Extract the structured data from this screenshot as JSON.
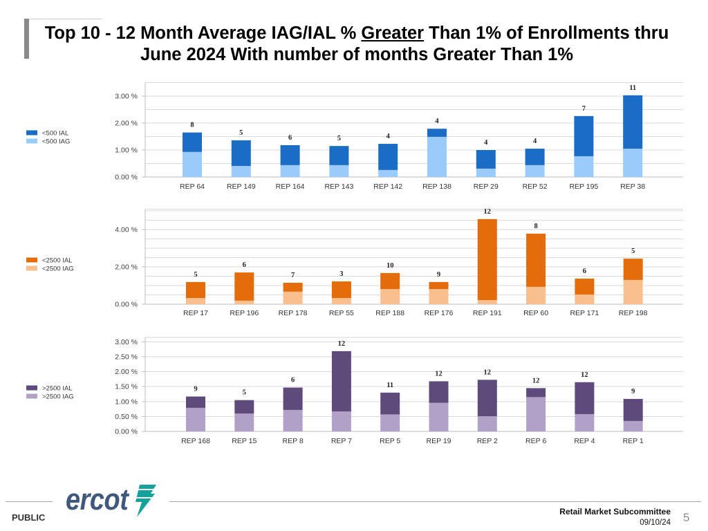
{
  "slide": {
    "title": {
      "line1_pre": "Top 10 - 12 Month Average IAG/IAL % ",
      "line1_emph": "Greater",
      "line1_post": " Than 1% of Enrollments thru",
      "line2": "June 2024 With number of months Greater Than 1%"
    },
    "footer": {
      "classification": "PUBLIC",
      "logo_text": "ercot",
      "committee": "Retail Market Subcommittee",
      "date": "09/10/24",
      "page_number": "5"
    }
  },
  "colors": {
    "title_accent": "#8a8a8a",
    "logo_text": "#40587c",
    "logo_mark": "#14a39b"
  },
  "chart_data": [
    {
      "type": "bar",
      "stacked": true,
      "categories": [
        "REP 64",
        "REP 149",
        "REP 164",
        "REP 143",
        "REP 142",
        "REP 138",
        "REP 29",
        "REP 52",
        "REP 195",
        "REP 38"
      ],
      "series": [
        {
          "name": "<500 IAL",
          "color": "#1a6cc4",
          "values": [
            0.72,
            0.95,
            0.74,
            0.71,
            0.97,
            0.3,
            0.69,
            0.61,
            1.49,
            1.98
          ]
        },
        {
          "name": "<500 IAG",
          "color": "#99ccfa",
          "values": [
            0.93,
            0.41,
            0.44,
            0.44,
            0.26,
            1.49,
            0.31,
            0.44,
            0.77,
            1.05
          ]
        }
      ],
      "month_counts": [
        8,
        5,
        6,
        5,
        4,
        4,
        4,
        4,
        7,
        11
      ],
      "yticks": [
        0,
        1,
        2,
        3
      ],
      "ytick_labels": [
        "0.00 %",
        "1.00 %",
        "2.00 %",
        "3.00 %"
      ],
      "ylim": [
        0,
        3.5
      ],
      "grid_step": 0.5,
      "legend_position": "left"
    },
    {
      "type": "bar",
      "stacked": true,
      "categories": [
        "REP 17",
        "REP 196",
        "REP 178",
        "REP 55",
        "REP 188",
        "REP 176",
        "REP 191",
        "REP 60",
        "REP 171",
        "REP 198"
      ],
      "series": [
        {
          "name": "<2500 IAL",
          "color": "#e46c0a",
          "values": [
            0.86,
            1.51,
            0.48,
            0.89,
            0.86,
            0.38,
            4.34,
            2.85,
            0.85,
            1.14
          ]
        },
        {
          "name": "<2500 IAG",
          "color": "#fabf8f",
          "values": [
            0.33,
            0.19,
            0.67,
            0.33,
            0.81,
            0.81,
            0.22,
            0.93,
            0.52,
            1.3
          ]
        }
      ],
      "month_counts": [
        5,
        6,
        7,
        3,
        10,
        9,
        12,
        8,
        6,
        5
      ],
      "yticks": [
        0,
        2,
        4
      ],
      "ytick_labels": [
        "0.00 %",
        "2.00 %",
        "4.00 %"
      ],
      "ylim": [
        0,
        5.1
      ],
      "grid_step": 0.5,
      "legend_position": "left"
    },
    {
      "type": "bar",
      "stacked": true,
      "categories": [
        "REP 168",
        "REP 15",
        "REP 8",
        "REP 7",
        "REP 5",
        "REP 19",
        "REP 2",
        "REP 6",
        "REP 4",
        "REP 1"
      ],
      "series": [
        {
          "name": ">2500 IAL",
          "color": "#5f4a7c",
          "values": [
            0.38,
            0.45,
            0.75,
            2.02,
            0.73,
            0.72,
            1.22,
            0.3,
            1.07,
            0.74
          ]
        },
        {
          "name": ">2500 IAG",
          "color": "#b2a1c7",
          "values": [
            0.79,
            0.6,
            0.72,
            0.67,
            0.57,
            0.96,
            0.51,
            1.15,
            0.58,
            0.35
          ]
        }
      ],
      "month_counts": [
        9,
        5,
        6,
        12,
        11,
        12,
        12,
        12,
        12,
        9
      ],
      "yticks": [
        0,
        0.5,
        1,
        1.5,
        2,
        2.5,
        3
      ],
      "ytick_labels": [
        "0.00 %",
        "0.50 %",
        "1.00 %",
        "1.50 %",
        "2.00 %",
        "2.50 %",
        "3.00 %"
      ],
      "ylim": [
        0,
        3.15
      ],
      "grid_step": 0.5,
      "legend_position": "left"
    }
  ]
}
